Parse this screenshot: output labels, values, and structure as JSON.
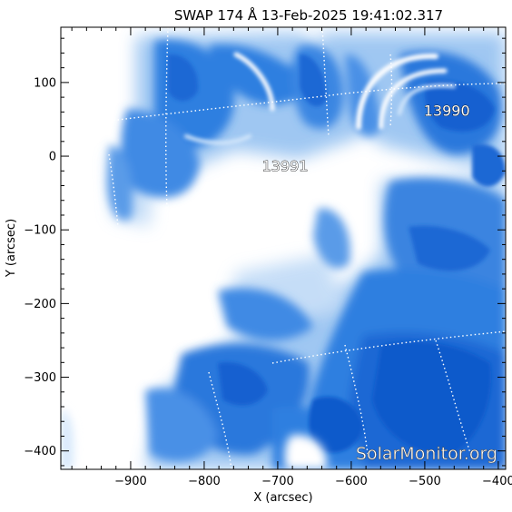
{
  "title": "SWAP 174 Å 13-Feb-2025 19:41:02.317",
  "x_axis": {
    "label": "X (arcsec)",
    "range": [
      -995,
      -390
    ],
    "major_ticks": [
      -900,
      -800,
      -700,
      -600,
      -500,
      -400
    ],
    "tick_labels": [
      "−900",
      "−800",
      "−700",
      "−600",
      "−500",
      "−400"
    ],
    "minor_step": 20
  },
  "y_axis": {
    "label": "Y (arcsec)",
    "range": [
      -425,
      175
    ],
    "major_ticks": [
      100,
      0,
      -100,
      -200,
      -300,
      -400
    ],
    "tick_labels": [
      "100",
      "0",
      "−100",
      "−200",
      "−300",
      "−400"
    ],
    "minor_step": 20
  },
  "active_regions": [
    {
      "label": "13990",
      "x": -470,
      "y": 55
    },
    {
      "label": "13991",
      "x": -690,
      "y": -20
    }
  ],
  "watermark": "SolarMonitor.org",
  "colors": {
    "deep": "#0a55c8",
    "mid": "#2f7fe0",
    "light": "#8fbef0",
    "pale": "#d6e8fb",
    "axis": "#000000"
  }
}
